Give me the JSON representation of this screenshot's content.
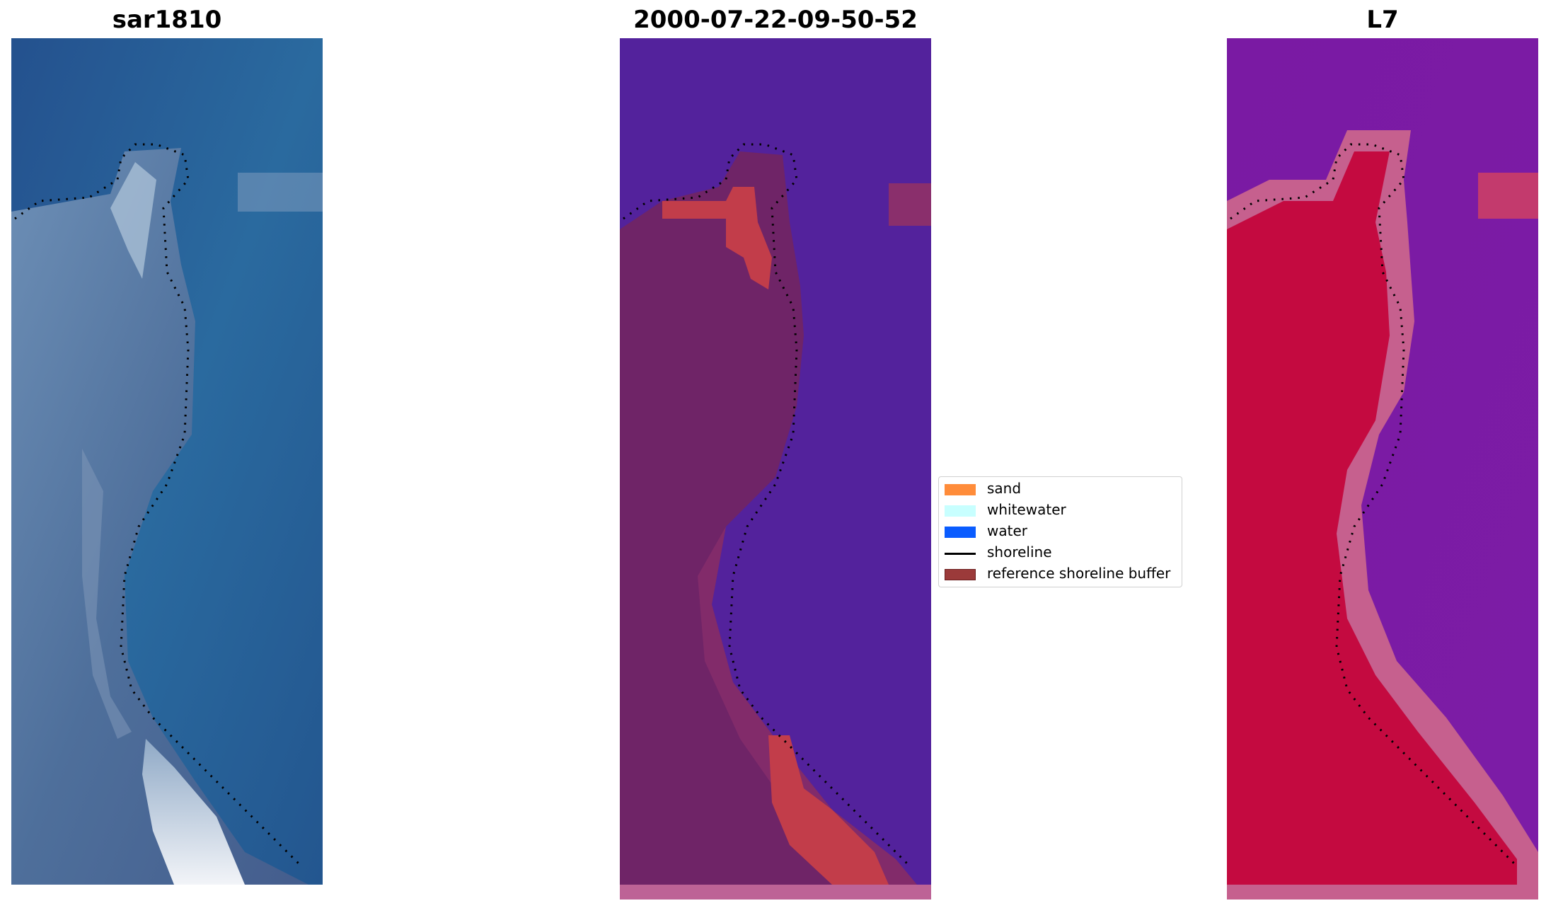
{
  "panels": [
    {
      "title": "sar1810",
      "kind": "rgb"
    },
    {
      "title": "2000-07-22-09-50-52",
      "kind": "classified"
    },
    {
      "title": "L7",
      "kind": "index"
    }
  ],
  "legend": {
    "items": [
      {
        "label": "sand",
        "color": "#ff8c3a",
        "type": "patch"
      },
      {
        "label": "whitewater",
        "color": "#c8ffff",
        "type": "patch"
      },
      {
        "label": "water",
        "color": "#0a5cff",
        "type": "patch"
      },
      {
        "label": "shoreline",
        "color": "#000000",
        "type": "line"
      },
      {
        "label": "reference shoreline buffer",
        "color": "#9b3a3a",
        "type": "patch"
      }
    ]
  },
  "colors": {
    "rgb_water": "#23609a",
    "rgb_land": "#4a6f9c",
    "rgb_sand": "#c9d6e6",
    "class_water": "#53229c",
    "class_land": "#6f2467",
    "class_buffer": "#c23d4a",
    "class_border": "#bd6396",
    "index_water": "#7a1aa5",
    "index_land": "#c40a40",
    "index_edge": "#c6608e"
  }
}
